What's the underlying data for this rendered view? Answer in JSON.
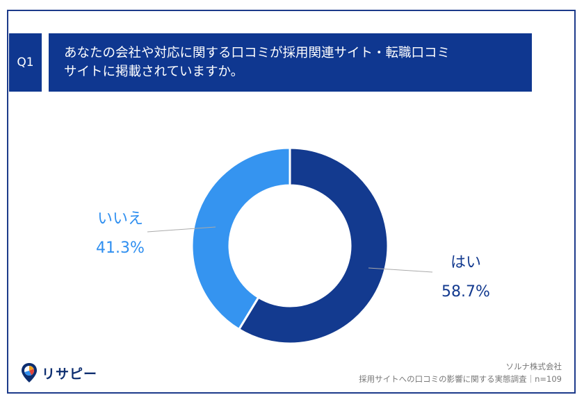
{
  "question": {
    "number": "Q1",
    "title_line1": "あなたの会社や対応に関する口コミが採用関連サイト・転職口コミ",
    "title_line2": "サイトに掲載されていますか。"
  },
  "chart_data": {
    "type": "pie",
    "donut": true,
    "slices": [
      {
        "label": "はい",
        "value": 58.7,
        "value_label": "58.7%",
        "color": "#133a8f"
      },
      {
        "label": "いいえ",
        "value": 41.3,
        "value_label": "41.3%",
        "color": "#3594f0"
      }
    ]
  },
  "logo": {
    "text": "リサピー"
  },
  "footer": {
    "company": "ソルナ株式会社",
    "source": "採用サイトへの口コミの影響に関する実態調査｜n=109"
  }
}
